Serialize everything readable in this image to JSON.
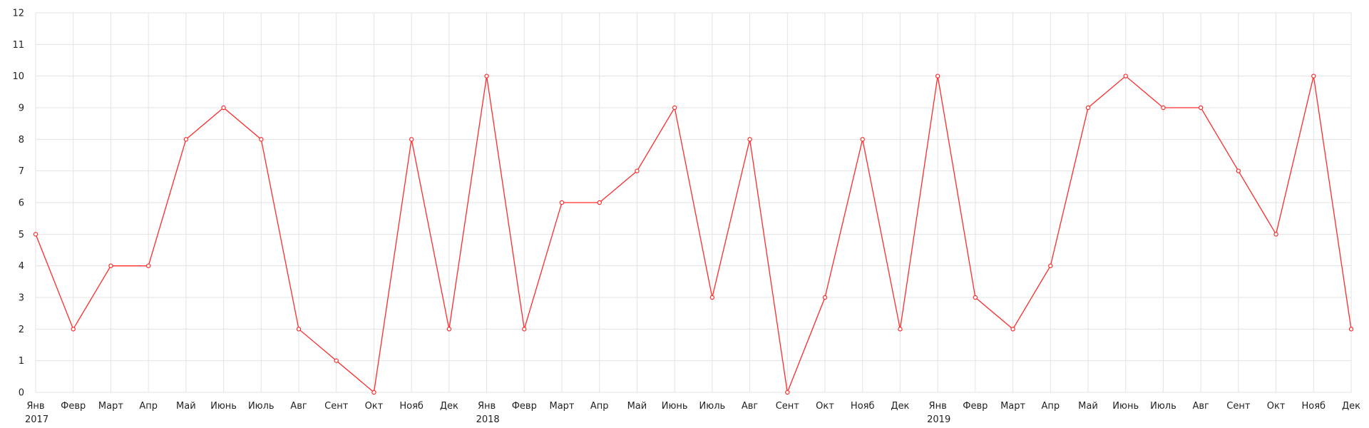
{
  "chart_data": {
    "type": "line",
    "title": "",
    "xlabel": "",
    "ylabel": "",
    "ylim": [
      0,
      12
    ],
    "yticks": [
      "0",
      "1",
      "2",
      "3",
      "4",
      "5",
      "6",
      "7",
      "8",
      "9",
      "10",
      "11",
      "12"
    ],
    "grid": true,
    "legend": "none",
    "colors": {
      "series": "#ff2a2a",
      "grid": "#e3e3e3",
      "text": "#222222"
    },
    "x": [
      "Янв",
      "Февр",
      "Март",
      "Апр",
      "Май",
      "Июнь",
      "Июль",
      "Авг",
      "Сент",
      "Окт",
      "Нояб",
      "Дек",
      "Янв",
      "Февр",
      "Март",
      "Апр",
      "Май",
      "Июнь",
      "Июль",
      "Авг",
      "Сент",
      "Окт",
      "Нояб",
      "Дек",
      "Янв",
      "Февр",
      "Март",
      "Апр",
      "Май",
      "Июнь",
      "Июль",
      "Авг",
      "Сент",
      "Окт",
      "Нояб",
      "Дек"
    ],
    "year_labels": [
      {
        "index": 0,
        "label": "2017"
      },
      {
        "index": 12,
        "label": "2018"
      },
      {
        "index": 24,
        "label": "2019"
      }
    ],
    "series": [
      {
        "values": [
          5,
          2,
          4,
          4,
          8,
          9,
          8,
          2,
          1,
          0,
          8,
          2,
          10,
          2,
          6,
          6,
          7,
          9,
          3,
          8,
          0,
          3,
          8,
          2,
          10,
          3,
          2,
          4,
          9,
          10,
          9,
          9,
          7,
          5,
          10,
          2
        ]
      }
    ]
  }
}
